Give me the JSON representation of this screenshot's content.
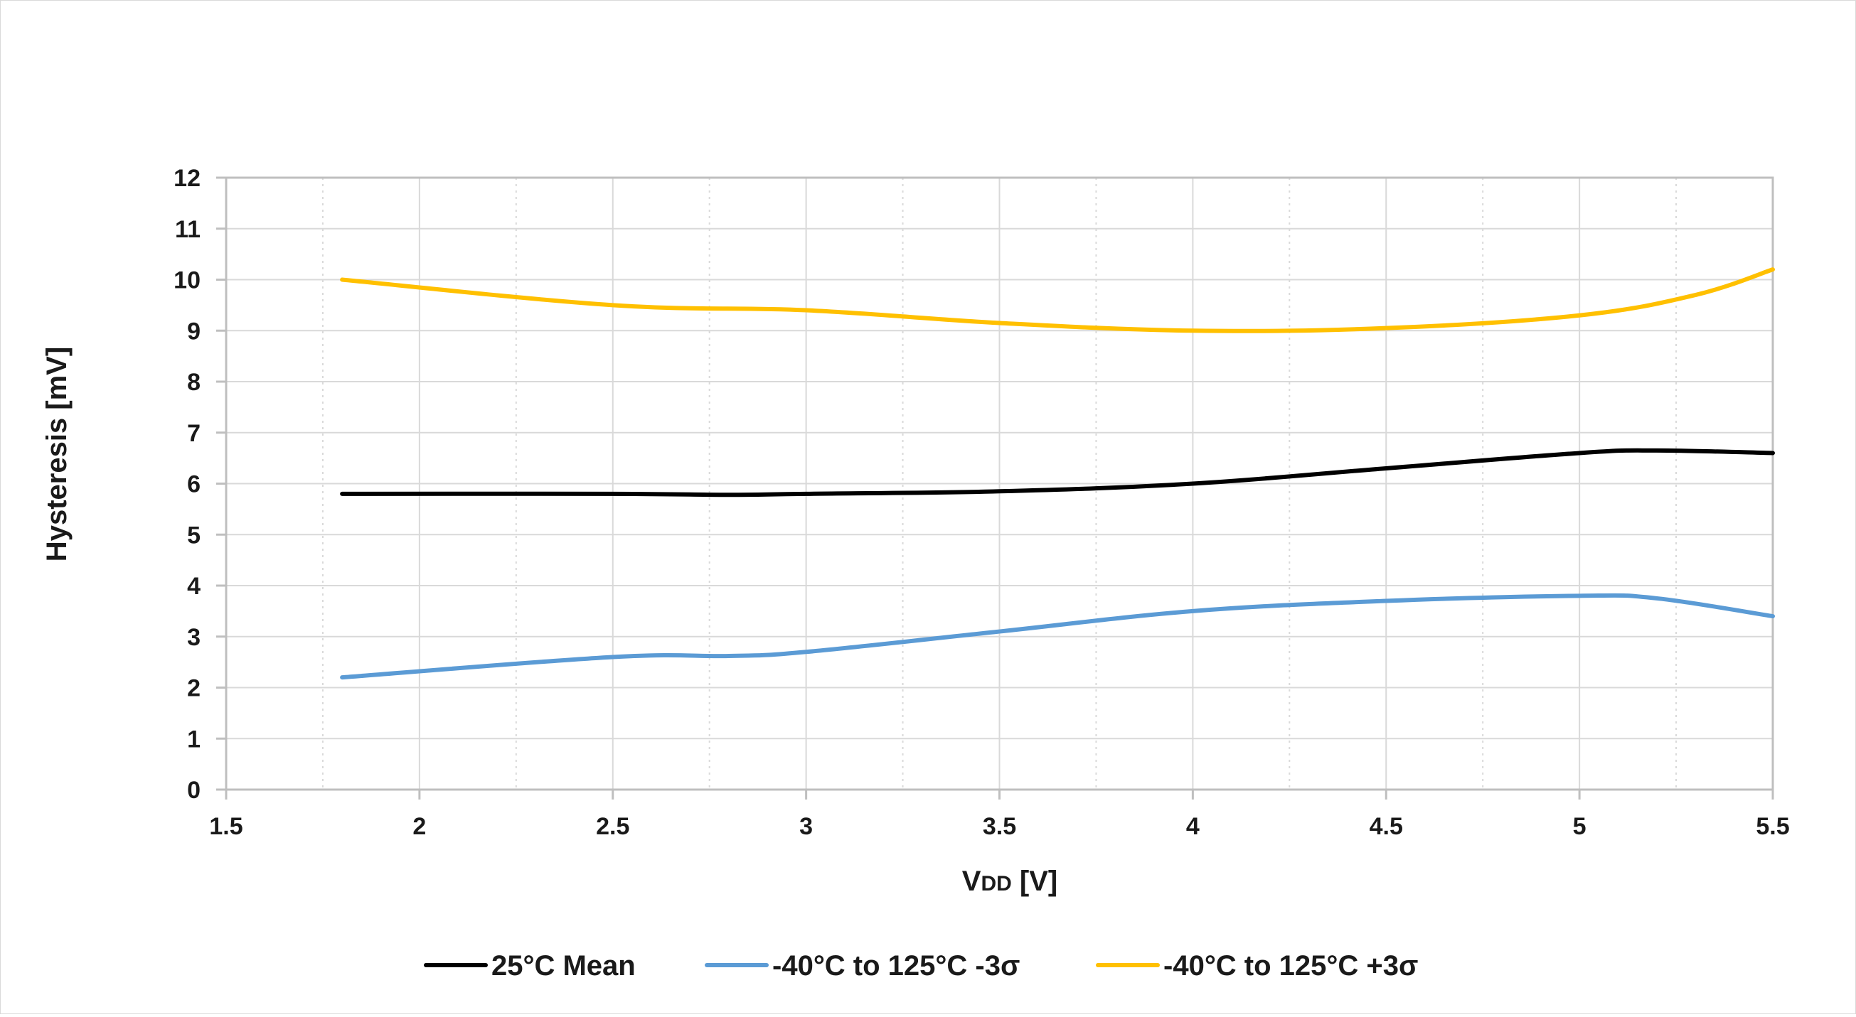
{
  "chart_data": {
    "type": "line",
    "title": "",
    "xlabel": "VDD [V]",
    "xlabel_parts": {
      "main": "V",
      "sub": "DD",
      "unit": " [V]"
    },
    "ylabel": "Hysteresis [mV]",
    "xlim": [
      1.5,
      5.5
    ],
    "ylim": [
      0,
      12
    ],
    "xticks": [
      "1.5",
      "2",
      "2.5",
      "3",
      "3.5",
      "4",
      "4.5",
      "5",
      "5.5"
    ],
    "yticks": [
      "0",
      "1",
      "2",
      "3",
      "4",
      "5",
      "6",
      "7",
      "8",
      "9",
      "10",
      "11",
      "12"
    ],
    "grid": true,
    "legend_position": "bottom",
    "series": [
      {
        "name": "25°C Mean",
        "color": "#000000",
        "x": [
          1.8,
          2.5,
          2.8,
          3.0,
          3.5,
          4.0,
          4.5,
          5.0,
          5.2,
          5.5
        ],
        "y": [
          5.8,
          5.8,
          5.78,
          5.8,
          5.85,
          6.0,
          6.3,
          6.6,
          6.65,
          6.6
        ]
      },
      {
        "name": "-40°C to 125°C -3σ",
        "color": "#5b9bd5",
        "x": [
          1.8,
          2.5,
          2.8,
          3.0,
          3.5,
          4.0,
          4.5,
          5.0,
          5.2,
          5.5
        ],
        "y": [
          2.2,
          2.6,
          2.62,
          2.7,
          3.1,
          3.5,
          3.7,
          3.8,
          3.75,
          3.4
        ]
      },
      {
        "name": "-40°C to 125°C +3σ",
        "color": "#ffc000",
        "x": [
          1.8,
          2.5,
          3.0,
          3.5,
          4.0,
          4.5,
          5.0,
          5.3,
          5.5
        ],
        "y": [
          10.0,
          9.5,
          9.4,
          9.15,
          9.0,
          9.05,
          9.3,
          9.7,
          10.2
        ]
      }
    ]
  }
}
